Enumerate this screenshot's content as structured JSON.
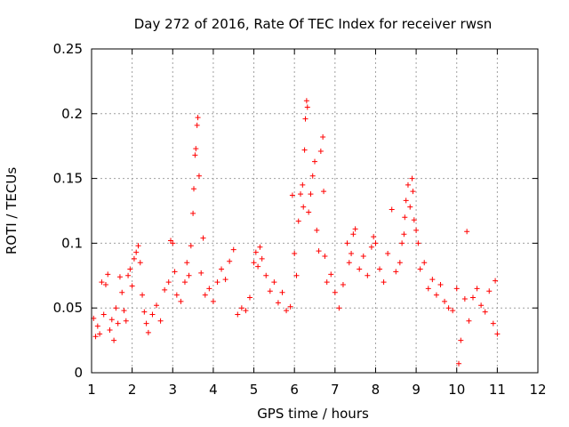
{
  "chart_data": {
    "type": "scatter",
    "title": "Day 272 of 2016, Rate Of TEC Index for receiver rwsn",
    "xlabel": "GPS time / hours",
    "ylabel": "ROTI / TECUs",
    "xlim": [
      1,
      12
    ],
    "ylim": [
      0,
      0.25
    ],
    "xticks": [
      1,
      2,
      3,
      4,
      5,
      6,
      7,
      8,
      9,
      10,
      11,
      12
    ],
    "xtick_labels": [
      "1",
      "2",
      "3",
      "4",
      "5",
      "6",
      "7",
      "8",
      "9",
      "10",
      "11",
      "12"
    ],
    "yticks": [
      0,
      0.05,
      0.1,
      0.15,
      0.2,
      0.25
    ],
    "ytick_labels": [
      "0",
      "0.05",
      "0.1",
      "0.15",
      "0.2",
      "0.25"
    ],
    "grid": true,
    "marker": "+",
    "series": [
      {
        "name": "ROTI",
        "color": "#ff0000",
        "points": [
          [
            1.05,
            0.042
          ],
          [
            1.1,
            0.028
          ],
          [
            1.15,
            0.036
          ],
          [
            1.2,
            0.03
          ],
          [
            1.25,
            0.07
          ],
          [
            1.3,
            0.045
          ],
          [
            1.35,
            0.068
          ],
          [
            1.4,
            0.076
          ],
          [
            1.45,
            0.033
          ],
          [
            1.5,
            0.041
          ],
          [
            1.55,
            0.025
          ],
          [
            1.6,
            0.05
          ],
          [
            1.65,
            0.038
          ],
          [
            1.7,
            0.074
          ],
          [
            1.75,
            0.062
          ],
          [
            1.8,
            0.048
          ],
          [
            1.85,
            0.04
          ],
          [
            1.9,
            0.075
          ],
          [
            1.95,
            0.08
          ],
          [
            2.0,
            0.067
          ],
          [
            2.05,
            0.088
          ],
          [
            2.1,
            0.093
          ],
          [
            2.15,
            0.098
          ],
          [
            2.2,
            0.085
          ],
          [
            2.25,
            0.06
          ],
          [
            2.3,
            0.047
          ],
          [
            2.35,
            0.038
          ],
          [
            2.4,
            0.031
          ],
          [
            2.5,
            0.045
          ],
          [
            2.6,
            0.052
          ],
          [
            2.7,
            0.04
          ],
          [
            2.8,
            0.064
          ],
          [
            2.9,
            0.07
          ],
          [
            2.95,
            0.102
          ],
          [
            3.0,
            0.1
          ],
          [
            3.05,
            0.078
          ],
          [
            3.1,
            0.06
          ],
          [
            3.2,
            0.055
          ],
          [
            3.3,
            0.07
          ],
          [
            3.35,
            0.085
          ],
          [
            3.4,
            0.075
          ],
          [
            3.45,
            0.098
          ],
          [
            3.5,
            0.123
          ],
          [
            3.52,
            0.142
          ],
          [
            3.55,
            0.168
          ],
          [
            3.57,
            0.173
          ],
          [
            3.6,
            0.191
          ],
          [
            3.62,
            0.197
          ],
          [
            3.65,
            0.152
          ],
          [
            3.7,
            0.077
          ],
          [
            3.75,
            0.104
          ],
          [
            3.8,
            0.06
          ],
          [
            3.9,
            0.065
          ],
          [
            4.0,
            0.055
          ],
          [
            4.1,
            0.07
          ],
          [
            4.2,
            0.08
          ],
          [
            4.3,
            0.072
          ],
          [
            4.4,
            0.086
          ],
          [
            4.5,
            0.095
          ],
          [
            4.6,
            0.045
          ],
          [
            4.7,
            0.05
          ],
          [
            4.8,
            0.048
          ],
          [
            4.9,
            0.058
          ],
          [
            5.0,
            0.085
          ],
          [
            5.05,
            0.093
          ],
          [
            5.1,
            0.082
          ],
          [
            5.15,
            0.097
          ],
          [
            5.2,
            0.088
          ],
          [
            5.3,
            0.075
          ],
          [
            5.4,
            0.063
          ],
          [
            5.5,
            0.07
          ],
          [
            5.6,
            0.054
          ],
          [
            5.7,
            0.062
          ],
          [
            5.8,
            0.048
          ],
          [
            5.9,
            0.051
          ],
          [
            5.95,
            0.137
          ],
          [
            6.0,
            0.092
          ],
          [
            6.05,
            0.075
          ],
          [
            6.1,
            0.117
          ],
          [
            6.15,
            0.138
          ],
          [
            6.2,
            0.145
          ],
          [
            6.22,
            0.128
          ],
          [
            6.25,
            0.172
          ],
          [
            6.27,
            0.196
          ],
          [
            6.3,
            0.21
          ],
          [
            6.32,
            0.205
          ],
          [
            6.35,
            0.124
          ],
          [
            6.4,
            0.138
          ],
          [
            6.45,
            0.152
          ],
          [
            6.5,
            0.163
          ],
          [
            6.55,
            0.11
          ],
          [
            6.6,
            0.094
          ],
          [
            6.65,
            0.171
          ],
          [
            6.7,
            0.182
          ],
          [
            6.72,
            0.14
          ],
          [
            6.75,
            0.09
          ],
          [
            6.8,
            0.07
          ],
          [
            6.9,
            0.076
          ],
          [
            7.0,
            0.062
          ],
          [
            7.1,
            0.05
          ],
          [
            7.2,
            0.068
          ],
          [
            7.3,
            0.1
          ],
          [
            7.35,
            0.085
          ],
          [
            7.4,
            0.092
          ],
          [
            7.45,
            0.107
          ],
          [
            7.5,
            0.111
          ],
          [
            7.6,
            0.08
          ],
          [
            7.7,
            0.09
          ],
          [
            7.8,
            0.075
          ],
          [
            7.9,
            0.097
          ],
          [
            7.95,
            0.105
          ],
          [
            8.0,
            0.1
          ],
          [
            8.1,
            0.08
          ],
          [
            8.2,
            0.07
          ],
          [
            8.3,
            0.092
          ],
          [
            8.4,
            0.126
          ],
          [
            8.5,
            0.078
          ],
          [
            8.6,
            0.085
          ],
          [
            8.65,
            0.1
          ],
          [
            8.7,
            0.107
          ],
          [
            8.72,
            0.12
          ],
          [
            8.75,
            0.133
          ],
          [
            8.8,
            0.145
          ],
          [
            8.85,
            0.128
          ],
          [
            8.9,
            0.15
          ],
          [
            8.92,
            0.14
          ],
          [
            8.95,
            0.118
          ],
          [
            9.0,
            0.11
          ],
          [
            9.05,
            0.1
          ],
          [
            9.1,
            0.08
          ],
          [
            9.2,
            0.085
          ],
          [
            9.3,
            0.065
          ],
          [
            9.4,
            0.072
          ],
          [
            9.5,
            0.06
          ],
          [
            9.6,
            0.068
          ],
          [
            9.7,
            0.055
          ],
          [
            9.8,
            0.05
          ],
          [
            9.9,
            0.048
          ],
          [
            10.0,
            0.065
          ],
          [
            10.05,
            0.007
          ],
          [
            10.1,
            0.025
          ],
          [
            10.2,
            0.057
          ],
          [
            10.25,
            0.109
          ],
          [
            10.3,
            0.04
          ],
          [
            10.4,
            0.058
          ],
          [
            10.5,
            0.065
          ],
          [
            10.6,
            0.052
          ],
          [
            10.7,
            0.047
          ],
          [
            10.8,
            0.063
          ],
          [
            10.9,
            0.038
          ],
          [
            10.95,
            0.071
          ],
          [
            11.0,
            0.03
          ]
        ]
      }
    ]
  }
}
